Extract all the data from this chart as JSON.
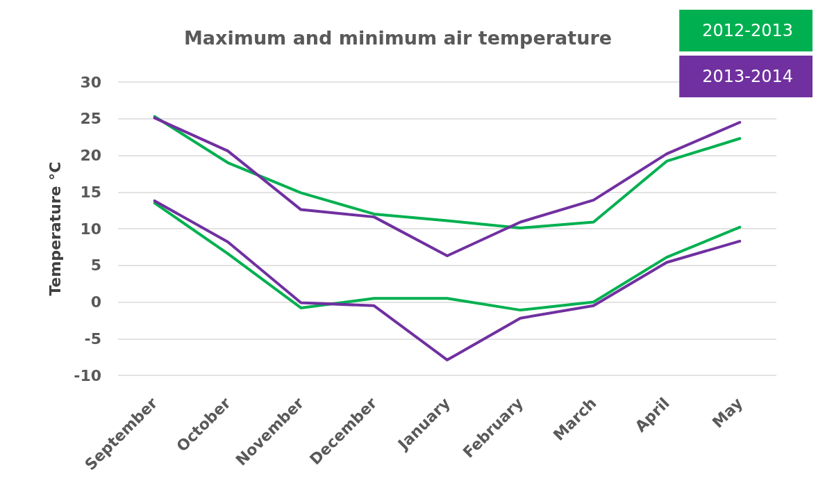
{
  "chart_data": {
    "type": "line",
    "title": "Maximum and minimum air temperature",
    "ylabel": "Temperature °C",
    "categories": [
      "September",
      "October",
      "November",
      "December",
      "January",
      "February",
      "March",
      "April",
      "May"
    ],
    "series": [
      {
        "name": "2012-2013",
        "color": "#00b050",
        "values": [
          25.3,
          19.0,
          14.9,
          12.0,
          11.1,
          10.1,
          10.9,
          19.2,
          22.3
        ]
      },
      {
        "color": "#00b050",
        "values": [
          13.5,
          6.6,
          -0.8,
          0.5,
          0.5,
          -1.1,
          0,
          6.1,
          10.2
        ]
      },
      {
        "name": "2013-2014",
        "color": "#7030a0",
        "values": [
          25.1,
          20.6,
          12.6,
          11.6,
          6.3,
          10.9,
          13.9,
          20.2,
          24.5
        ]
      },
      {
        "color": "#7030a0",
        "values": [
          13.8,
          8.2,
          -0.1,
          -0.5,
          -7.9,
          -2.2,
          -0.5,
          5.4,
          8.3
        ]
      }
    ],
    "ylim": [
      -10,
      30
    ],
    "yticks": [
      -10,
      -5,
      0,
      5,
      10,
      15,
      20,
      25,
      30
    ],
    "grid": "y",
    "legend": "top right",
    "marker": "none",
    "line_style": "solid"
  }
}
